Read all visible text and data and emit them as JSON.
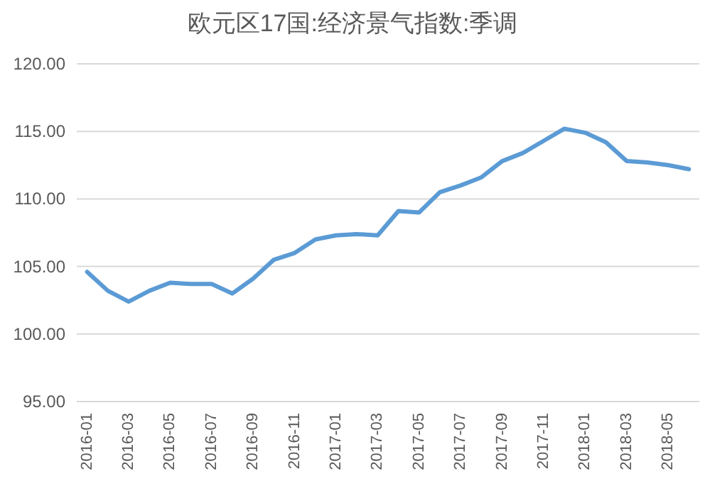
{
  "chart_data": {
    "type": "line",
    "title": "欧元区17国:经济景气指数:季调",
    "categories": [
      "2016-01",
      null,
      "2016-03",
      null,
      "2016-05",
      null,
      "2016-07",
      null,
      "2016-09",
      null,
      "2016-11",
      null,
      "2017-01",
      null,
      "2017-03",
      null,
      "2017-05",
      null,
      "2017-07",
      null,
      "2017-09",
      null,
      "2017-11",
      null,
      "2018-01",
      null,
      "2018-03",
      null,
      "2018-05",
      null
    ],
    "series": [
      {
        "color": "#5b9bd5",
        "values": [
          104.6,
          103.2,
          102.4,
          103.2,
          103.8,
          103.7,
          103.7,
          103.0,
          104.1,
          105.5,
          106.0,
          107.0,
          107.3,
          107.4,
          107.3,
          109.1,
          109.0,
          110.5,
          111.0,
          111.6,
          112.8,
          113.4,
          114.3,
          115.2,
          114.9,
          114.2,
          112.8,
          112.7,
          112.5,
          112.2
        ]
      }
    ],
    "ylim": [
      95,
      120
    ],
    "yticks": [
      {
        "value": 95,
        "label": "95.00"
      },
      {
        "value": 100,
        "label": "100.00"
      },
      {
        "value": 105,
        "label": "105.00"
      },
      {
        "value": 110,
        "label": "110.00"
      },
      {
        "value": 115,
        "label": "115.00"
      },
      {
        "value": 120,
        "label": "120.00"
      }
    ],
    "grid": "y",
    "marker": "none",
    "line_style": "solid"
  }
}
